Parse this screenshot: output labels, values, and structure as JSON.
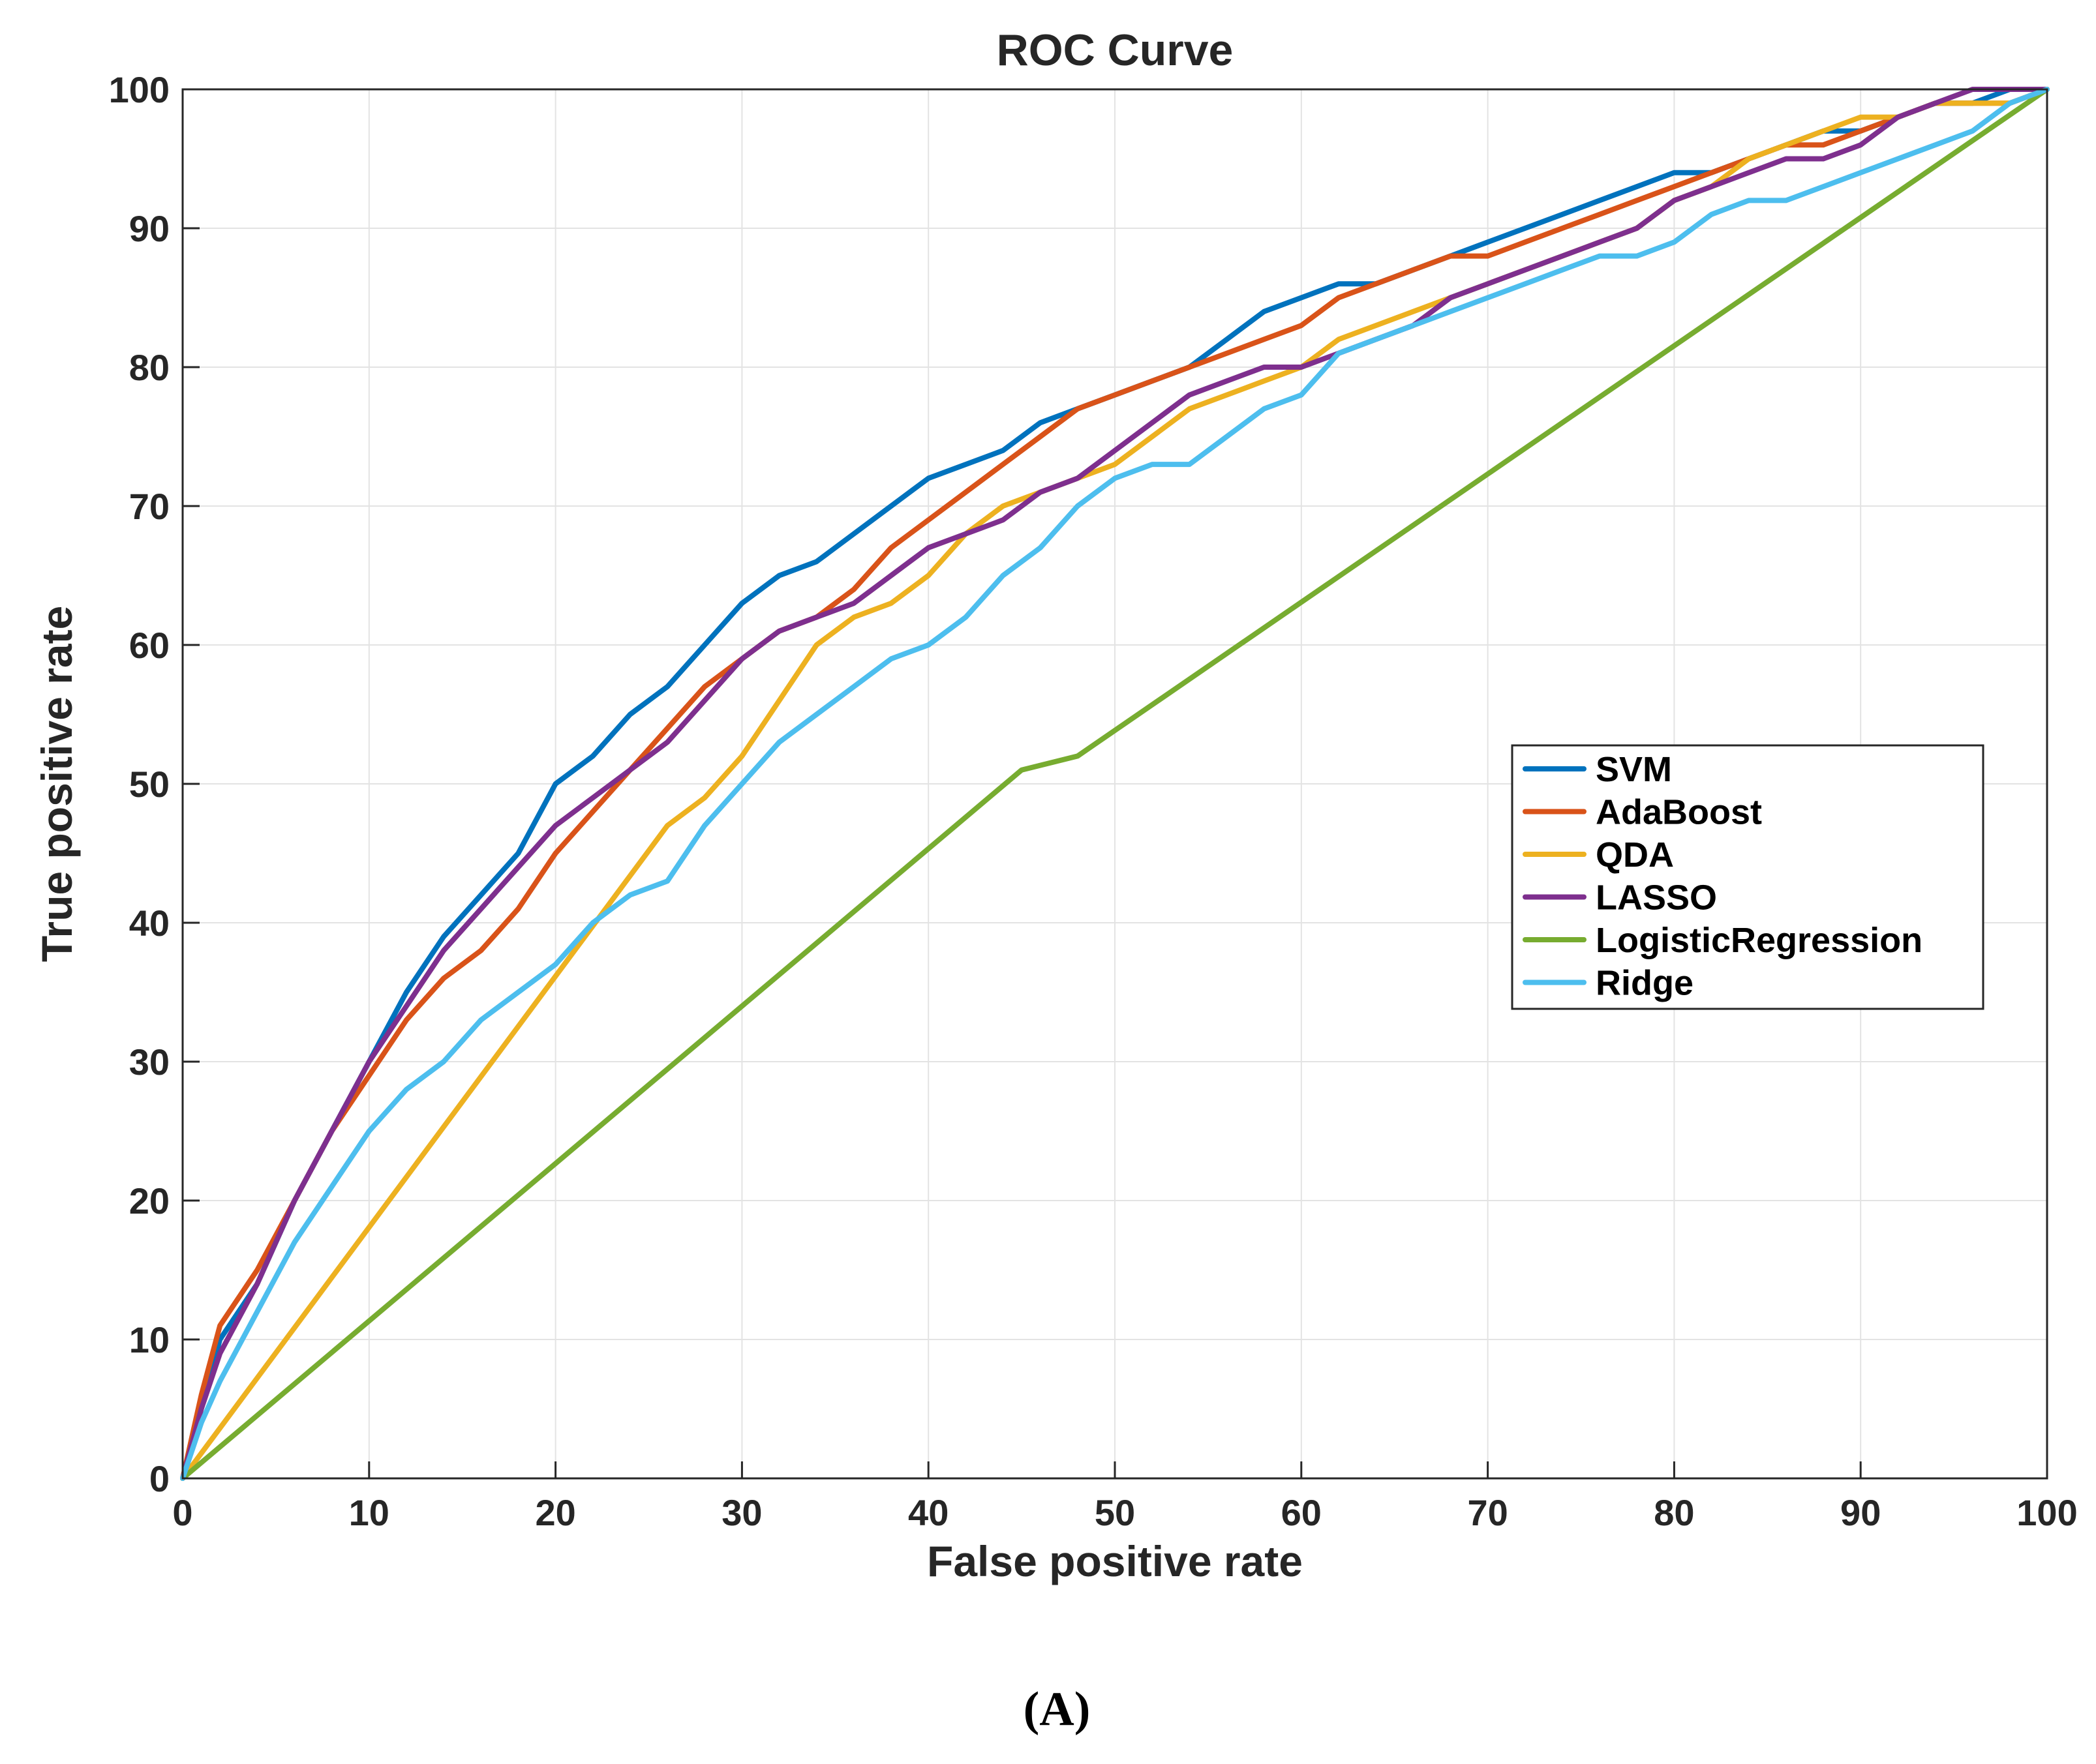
{
  "chart_data": {
    "type": "line",
    "title": "ROC Curve",
    "xlabel": "False positive rate",
    "ylabel": "True positive rate",
    "xlim": [
      0,
      100
    ],
    "ylim": [
      0,
      100
    ],
    "xticks": [
      "0",
      "10",
      "20",
      "30",
      "40",
      "50",
      "60",
      "70",
      "80",
      "90",
      "100"
    ],
    "yticks": [
      "0",
      "10",
      "20",
      "30",
      "40",
      "50",
      "60",
      "70",
      "80",
      "90",
      "100"
    ],
    "grid": true,
    "legend_position": "center-right",
    "series": [
      {
        "name": "SVM",
        "color": "#0072BD",
        "points": [
          [
            0,
            0
          ],
          [
            1,
            5
          ],
          [
            2,
            10
          ],
          [
            4,
            14
          ],
          [
            6,
            20
          ],
          [
            8,
            25
          ],
          [
            10,
            30
          ],
          [
            12,
            35
          ],
          [
            14,
            39
          ],
          [
            16,
            42
          ],
          [
            18,
            45
          ],
          [
            20,
            50
          ],
          [
            22,
            52
          ],
          [
            24,
            55
          ],
          [
            26,
            57
          ],
          [
            28,
            60
          ],
          [
            30,
            63
          ],
          [
            32,
            65
          ],
          [
            34,
            66
          ],
          [
            36,
            68
          ],
          [
            38,
            70
          ],
          [
            40,
            72
          ],
          [
            42,
            73
          ],
          [
            44,
            74
          ],
          [
            46,
            76
          ],
          [
            48,
            77
          ],
          [
            50,
            78
          ],
          [
            52,
            79
          ],
          [
            54,
            80
          ],
          [
            56,
            82
          ],
          [
            58,
            84
          ],
          [
            60,
            85
          ],
          [
            62,
            86
          ],
          [
            64,
            86
          ],
          [
            66,
            87
          ],
          [
            68,
            88
          ],
          [
            70,
            89
          ],
          [
            72,
            90
          ],
          [
            74,
            91
          ],
          [
            76,
            92
          ],
          [
            78,
            93
          ],
          [
            80,
            94
          ],
          [
            82,
            94
          ],
          [
            84,
            95
          ],
          [
            86,
            96
          ],
          [
            88,
            97
          ],
          [
            90,
            97
          ],
          [
            92,
            98
          ],
          [
            94,
            99
          ],
          [
            96,
            99
          ],
          [
            98,
            100
          ],
          [
            100,
            100
          ]
        ]
      },
      {
        "name": "AdaBoost",
        "color": "#D95319",
        "points": [
          [
            0,
            0
          ],
          [
            1,
            6
          ],
          [
            2,
            11
          ],
          [
            4,
            15
          ],
          [
            6,
            20
          ],
          [
            8,
            25
          ],
          [
            10,
            29
          ],
          [
            12,
            33
          ],
          [
            14,
            36
          ],
          [
            16,
            38
          ],
          [
            18,
            41
          ],
          [
            20,
            45
          ],
          [
            22,
            48
          ],
          [
            24,
            51
          ],
          [
            26,
            54
          ],
          [
            28,
            57
          ],
          [
            30,
            59
          ],
          [
            32,
            61
          ],
          [
            34,
            62
          ],
          [
            36,
            64
          ],
          [
            38,
            67
          ],
          [
            40,
            69
          ],
          [
            42,
            71
          ],
          [
            44,
            73
          ],
          [
            46,
            75
          ],
          [
            48,
            77
          ],
          [
            50,
            78
          ],
          [
            52,
            79
          ],
          [
            54,
            80
          ],
          [
            56,
            81
          ],
          [
            58,
            82
          ],
          [
            60,
            83
          ],
          [
            62,
            85
          ],
          [
            64,
            86
          ],
          [
            66,
            87
          ],
          [
            68,
            88
          ],
          [
            70,
            88
          ],
          [
            72,
            89
          ],
          [
            74,
            90
          ],
          [
            76,
            91
          ],
          [
            78,
            92
          ],
          [
            80,
            93
          ],
          [
            82,
            94
          ],
          [
            84,
            95
          ],
          [
            86,
            96
          ],
          [
            88,
            96
          ],
          [
            90,
            97
          ],
          [
            92,
            98
          ],
          [
            94,
            99
          ],
          [
            96,
            99
          ],
          [
            98,
            99
          ],
          [
            100,
            100
          ]
        ]
      },
      {
        "name": "QDA",
        "color": "#EDB120",
        "points": [
          [
            0,
            0
          ],
          [
            26,
            47
          ],
          [
            28,
            49
          ],
          [
            30,
            52
          ],
          [
            32,
            56
          ],
          [
            34,
            60
          ],
          [
            36,
            62
          ],
          [
            38,
            63
          ],
          [
            40,
            65
          ],
          [
            42,
            68
          ],
          [
            44,
            70
          ],
          [
            46,
            71
          ],
          [
            48,
            72
          ],
          [
            50,
            73
          ],
          [
            52,
            75
          ],
          [
            54,
            77
          ],
          [
            56,
            78
          ],
          [
            58,
            79
          ],
          [
            60,
            80
          ],
          [
            62,
            82
          ],
          [
            64,
            83
          ],
          [
            66,
            84
          ],
          [
            68,
            85
          ],
          [
            70,
            86
          ],
          [
            72,
            87
          ],
          [
            74,
            88
          ],
          [
            76,
            89
          ],
          [
            78,
            90
          ],
          [
            80,
            92
          ],
          [
            82,
            93
          ],
          [
            84,
            95
          ],
          [
            86,
            96
          ],
          [
            88,
            97
          ],
          [
            90,
            98
          ],
          [
            92,
            98
          ],
          [
            94,
            99
          ],
          [
            96,
            99
          ],
          [
            98,
            99
          ],
          [
            100,
            100
          ]
        ]
      },
      {
        "name": "LASSO",
        "color": "#7E2F8E",
        "points": [
          [
            0,
            0
          ],
          [
            1,
            5
          ],
          [
            2,
            9
          ],
          [
            4,
            14
          ],
          [
            6,
            20
          ],
          [
            8,
            25
          ],
          [
            10,
            30
          ],
          [
            12,
            34
          ],
          [
            14,
            38
          ],
          [
            16,
            41
          ],
          [
            18,
            44
          ],
          [
            20,
            47
          ],
          [
            22,
            49
          ],
          [
            24,
            51
          ],
          [
            26,
            53
          ],
          [
            28,
            56
          ],
          [
            30,
            59
          ],
          [
            32,
            61
          ],
          [
            34,
            62
          ],
          [
            36,
            63
          ],
          [
            38,
            65
          ],
          [
            40,
            67
          ],
          [
            42,
            68
          ],
          [
            44,
            69
          ],
          [
            46,
            71
          ],
          [
            48,
            72
          ],
          [
            50,
            74
          ],
          [
            52,
            76
          ],
          [
            54,
            78
          ],
          [
            56,
            79
          ],
          [
            58,
            80
          ],
          [
            60,
            80
          ],
          [
            62,
            81
          ],
          [
            64,
            82
          ],
          [
            66,
            83
          ],
          [
            68,
            85
          ],
          [
            70,
            86
          ],
          [
            72,
            87
          ],
          [
            74,
            88
          ],
          [
            76,
            89
          ],
          [
            78,
            90
          ],
          [
            80,
            92
          ],
          [
            82,
            93
          ],
          [
            84,
            94
          ],
          [
            86,
            95
          ],
          [
            88,
            95
          ],
          [
            90,
            96
          ],
          [
            92,
            98
          ],
          [
            94,
            99
          ],
          [
            96,
            100
          ],
          [
            98,
            100
          ],
          [
            100,
            100
          ]
        ]
      },
      {
        "name": "LogisticRegression",
        "color": "#77AC30",
        "points": [
          [
            0,
            0
          ],
          [
            45,
            51
          ],
          [
            48,
            52
          ],
          [
            100,
            100
          ]
        ]
      },
      {
        "name": "Ridge",
        "color": "#4DBEEE",
        "points": [
          [
            0,
            0
          ],
          [
            1,
            4
          ],
          [
            2,
            7
          ],
          [
            4,
            12
          ],
          [
            6,
            17
          ],
          [
            8,
            21
          ],
          [
            10,
            25
          ],
          [
            12,
            28
          ],
          [
            14,
            30
          ],
          [
            16,
            33
          ],
          [
            18,
            35
          ],
          [
            20,
            37
          ],
          [
            22,
            40
          ],
          [
            24,
            42
          ],
          [
            26,
            43
          ],
          [
            28,
            47
          ],
          [
            30,
            50
          ],
          [
            32,
            53
          ],
          [
            34,
            55
          ],
          [
            36,
            57
          ],
          [
            38,
            59
          ],
          [
            40,
            60
          ],
          [
            42,
            62
          ],
          [
            44,
            65
          ],
          [
            46,
            67
          ],
          [
            48,
            70
          ],
          [
            50,
            72
          ],
          [
            52,
            73
          ],
          [
            54,
            73
          ],
          [
            56,
            75
          ],
          [
            58,
            77
          ],
          [
            60,
            78
          ],
          [
            62,
            81
          ],
          [
            64,
            82
          ],
          [
            66,
            83
          ],
          [
            68,
            84
          ],
          [
            70,
            85
          ],
          [
            72,
            86
          ],
          [
            74,
            87
          ],
          [
            76,
            88
          ],
          [
            78,
            88
          ],
          [
            80,
            89
          ],
          [
            82,
            91
          ],
          [
            84,
            92
          ],
          [
            86,
            92
          ],
          [
            88,
            93
          ],
          [
            90,
            94
          ],
          [
            92,
            95
          ],
          [
            94,
            96
          ],
          [
            96,
            97
          ],
          [
            98,
            99
          ],
          [
            100,
            100
          ]
        ]
      }
    ]
  },
  "figure": {
    "panel_label": "(A)"
  }
}
